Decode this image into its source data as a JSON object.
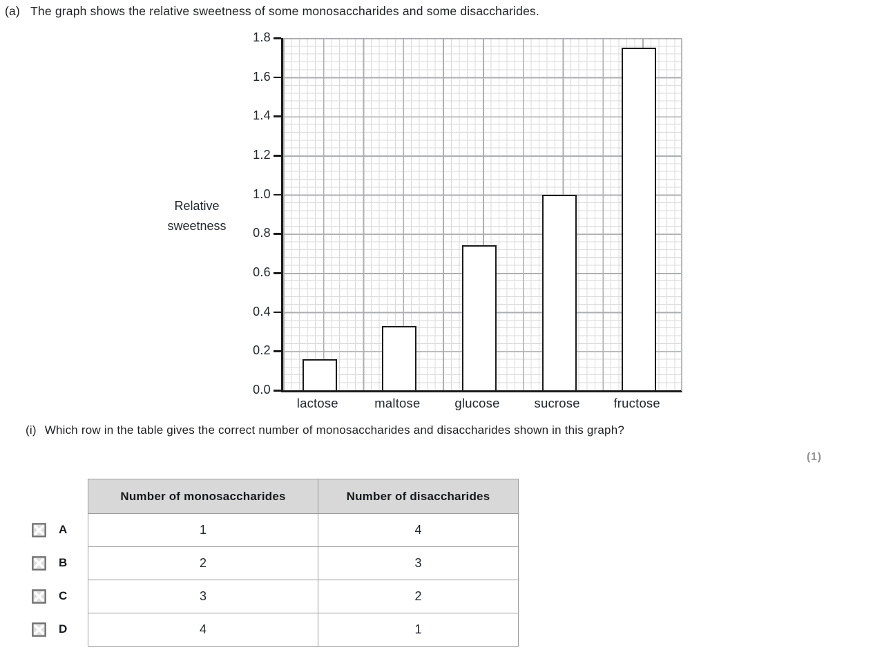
{
  "question": {
    "part_label": "(a)",
    "part_text": "The graph shows the relative sweetness of some monosaccharides and some disaccharides.",
    "subpart_label": "(i)",
    "subpart_text": "Which row in the table gives the correct number of monosaccharides and disaccharides shown in this graph?",
    "marks": "(1)"
  },
  "chart_data": {
    "type": "bar",
    "title": "",
    "categories": [
      "lactose",
      "maltose",
      "glucose",
      "sucrose",
      "fructose"
    ],
    "values": [
      0.16,
      0.33,
      0.74,
      1.0,
      1.75
    ],
    "xlabel": "",
    "ylabel_lines": [
      "Relative",
      "sweetness"
    ],
    "ylabel": "Relative sweetness",
    "ylim": [
      0.0,
      1.8
    ],
    "ytick_step": 0.2,
    "yticks": [
      "1.8",
      "1.6",
      "1.4",
      "1.2",
      "1.0",
      "0.8",
      "0.6",
      "0.4",
      "0.2",
      "0.0"
    ],
    "grid": "fine graph-paper grid on; minor cell 0.04, major line every 0.2",
    "legend": "none",
    "bar_fill": "#ffffff",
    "bar_border": "#1a1a1a"
  },
  "table": {
    "headers": [
      "Number of monosaccharides",
      "Number of disaccharides"
    ],
    "rows": [
      {
        "option": "A",
        "checkbox_icon": "checkbox-icon",
        "monosaccharides": "1",
        "disaccharides": "4"
      },
      {
        "option": "B",
        "checkbox_icon": "checkbox-icon",
        "monosaccharides": "2",
        "disaccharides": "3"
      },
      {
        "option": "C",
        "checkbox_icon": "checkbox-icon",
        "monosaccharides": "3",
        "disaccharides": "2"
      },
      {
        "option": "D",
        "checkbox_icon": "checkbox-icon",
        "monosaccharides": "4",
        "disaccharides": "1"
      }
    ]
  },
  "colors": {
    "text": "#1f2023",
    "chart_text": "#23272e",
    "axis": "#1a1a1a",
    "grid_minor": "#d9d9d9",
    "grid_major": "#adaeb0",
    "table_border": "#9a9a9a",
    "table_header_bg": "#d8d8d8",
    "marks_gray": "#8f9194",
    "checkbox_border": "#6f6f6f",
    "checkbox_fill": "#dedede",
    "checkbox_cross": "#ffffff"
  }
}
